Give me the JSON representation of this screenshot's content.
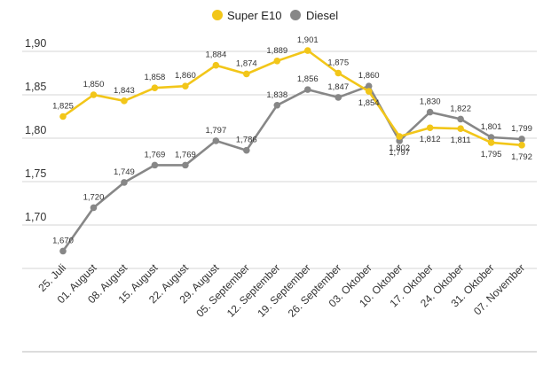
{
  "chart_data": {
    "type": "line",
    "title": "",
    "xlabel": "",
    "ylabel": "",
    "ylim": [
      1.65,
      1.92
    ],
    "yticks": [
      "1,70",
      "1,75",
      "1,80",
      "1,85",
      "1,90"
    ],
    "ytick_values": [
      1.7,
      1.75,
      1.8,
      1.85,
      1.9
    ],
    "grid": true,
    "legend_position": "top-center",
    "categories": [
      "25. Juli",
      "01. August",
      "08. August",
      "15. August",
      "22. August",
      "29. August",
      "05. September",
      "12. September",
      "19. September",
      "26. September",
      "03. Oktober",
      "10. Oktober",
      "17. Oktober",
      "24. Oktober",
      "31. Oktober",
      "07. November"
    ],
    "series": [
      {
        "name": "Super E10",
        "color": "#f2c619",
        "values": [
          1.825,
          1.85,
          1.843,
          1.858,
          1.86,
          1.884,
          1.874,
          1.889,
          1.901,
          1.875,
          1.854,
          1.802,
          1.812,
          1.811,
          1.795,
          1.792
        ],
        "labels": [
          "1,825",
          "1,850",
          "1,843",
          "1,858",
          "1,860",
          "1,884",
          "1,874",
          "1,889",
          "1,901",
          "1,875",
          "1,854",
          "1,802",
          "1,812",
          "1,811",
          "1,795",
          "1,792"
        ]
      },
      {
        "name": "Diesel",
        "color": "#878787",
        "values": [
          1.67,
          1.72,
          1.749,
          1.769,
          1.769,
          1.797,
          1.786,
          1.838,
          1.856,
          1.847,
          1.86,
          1.797,
          1.83,
          1.822,
          1.801,
          1.799
        ],
        "labels": [
          "1,670",
          "1,720",
          "1,749",
          "1,769",
          "1,769",
          "1,797",
          "1,786",
          "1,838",
          "1,856",
          "1,847",
          "1,860",
          "1,797",
          "1,830",
          "1,822",
          "1,801",
          "1,799"
        ]
      }
    ]
  }
}
